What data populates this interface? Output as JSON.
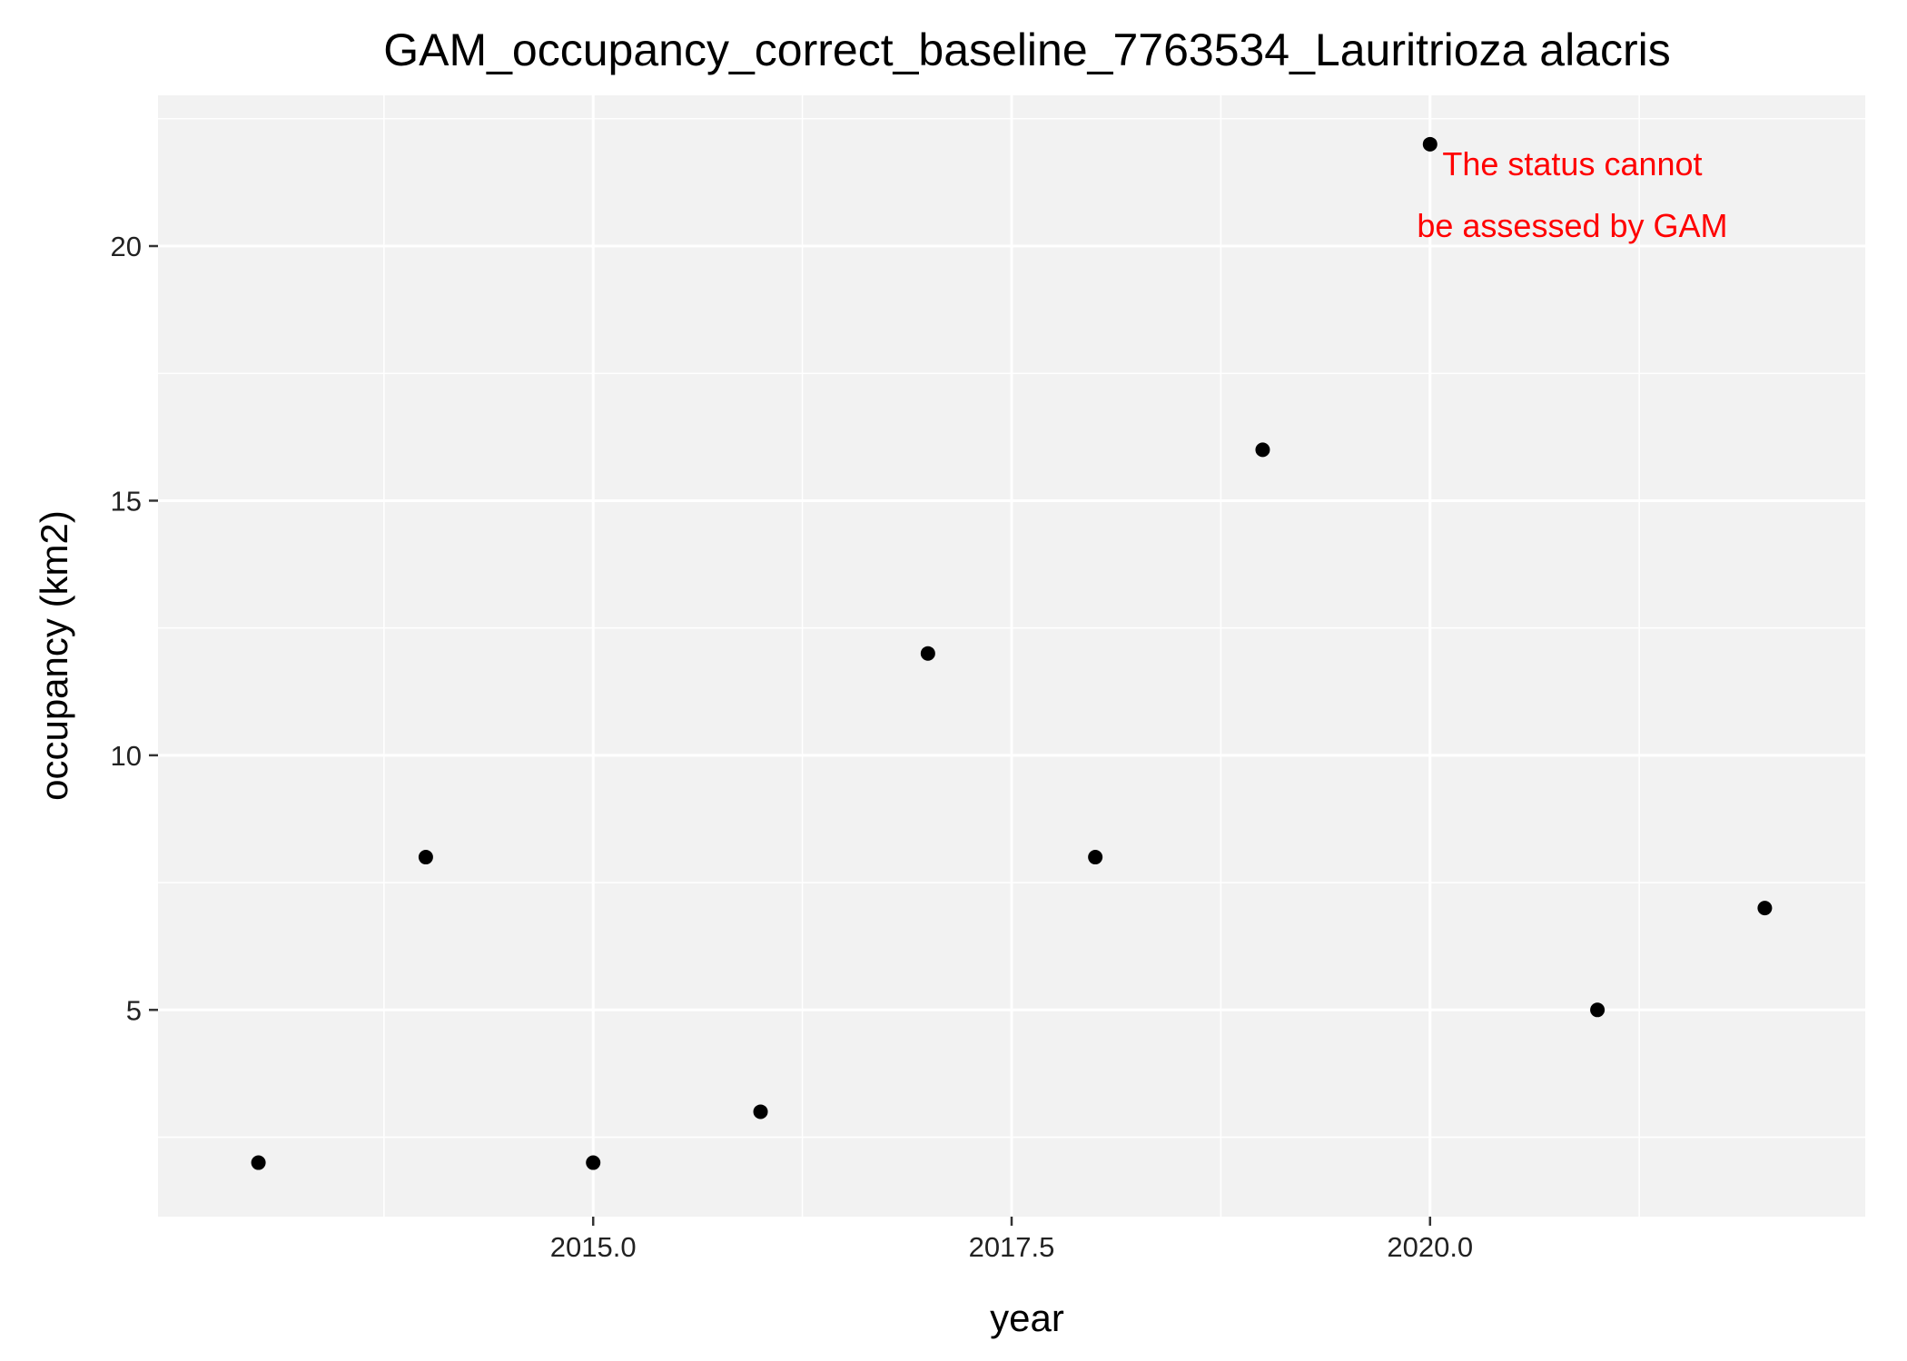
{
  "chart_data": {
    "type": "scatter",
    "title": "GAM_occupancy_correct_baseline_7763534_Lauritrioza alacris",
    "xlabel": "year",
    "ylabel": "occupancy (km2)",
    "xlim": [
      2012.4,
      2022.6
    ],
    "ylim": [
      0.94,
      22.96
    ],
    "x_ticks": [
      2015.0,
      2017.5,
      2020.0
    ],
    "x_tick_labels": [
      "2015.0",
      "2017.5",
      "2020.0"
    ],
    "x_minor_ticks": [
      2013.75,
      2016.25,
      2018.75,
      2021.25
    ],
    "y_ticks": [
      5,
      10,
      15,
      20
    ],
    "y_tick_labels": [
      "5",
      "10",
      "15",
      "20"
    ],
    "y_minor_ticks": [
      2.5,
      7.5,
      12.5,
      17.5,
      22.5
    ],
    "grid": true,
    "colors": {
      "panel": "#f2f2f2",
      "grid": "#ffffff",
      "point": "#000000",
      "annotation": "#ff0000"
    },
    "series": [
      {
        "points": [
          {
            "x": 2013,
            "y": 2
          },
          {
            "x": 2014,
            "y": 8
          },
          {
            "x": 2015,
            "y": 2
          },
          {
            "x": 2016,
            "y": 3
          },
          {
            "x": 2017,
            "y": 12
          },
          {
            "x": 2018,
            "y": 8
          },
          {
            "x": 2019,
            "y": 16
          },
          {
            "x": 2020,
            "y": 22
          },
          {
            "x": 2021,
            "y": 5
          },
          {
            "x": 2022,
            "y": 7
          }
        ]
      }
    ],
    "annotation": {
      "lines": [
        "The status cannot",
        "be assessed by GAM"
      ],
      "x": 2020.85,
      "y": 21.0
    }
  }
}
